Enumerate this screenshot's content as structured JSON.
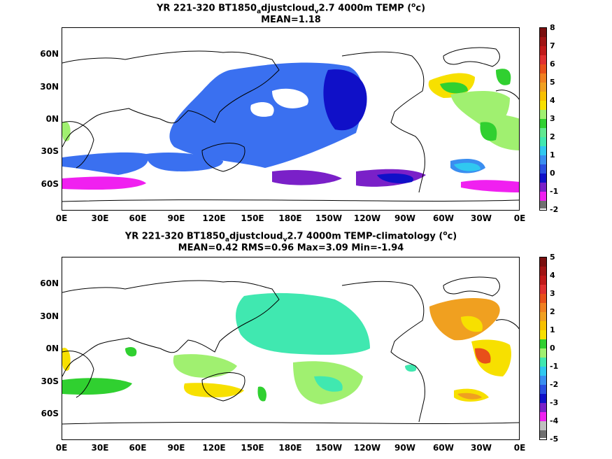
{
  "panel1": {
    "title_pre": "YR 221-320 BT1850",
    "title_sub1": "a",
    "title_mid": "djustcloud",
    "title_sub2": "v",
    "title_post": "2.7 4000m TEMP (",
    "title_sup": "o",
    "title_end": "c)",
    "stats": "MEAN=1.18",
    "colorbar_labels": [
      "8",
      "7",
      "6",
      "5",
      "4",
      "3",
      "2",
      "1",
      "0",
      "-1",
      "-2"
    ]
  },
  "panel2": {
    "title_pre": "YR 221-320 BT1850",
    "title_sub1": "a",
    "title_mid": "djustcloud",
    "title_sub2": "v",
    "title_post": "2.7 4000m TEMP-climatology (",
    "title_sup": "o",
    "title_end": "c)",
    "stats": "MEAN=0.42   RMS=0.96   Max=3.09   Min=-1.94",
    "colorbar_labels": [
      "5",
      "4",
      "3",
      "2",
      "1",
      "0",
      "-1",
      "-2",
      "-3",
      "-4",
      "-5"
    ]
  },
  "axes": {
    "lat_labels": [
      "60N",
      "30N",
      "0N",
      "30S",
      "60S"
    ],
    "lon_labels": [
      "0E",
      "30E",
      "60E",
      "90E",
      "120E",
      "150E",
      "180E",
      "150W",
      "120W",
      "90W",
      "60W",
      "30W",
      "0E"
    ]
  },
  "colors": {
    "scale": [
      "#7a0f0f",
      "#c01a1a",
      "#e8501a",
      "#f0a020",
      "#f7e000",
      "#30d030",
      "#a0f070",
      "#40e8b0",
      "#30c8f0",
      "#3a8ef0",
      "#2a50e0",
      "#1010c8",
      "#7a20c8",
      "#f020f0",
      "#c0c0c0",
      "#707070"
    ]
  }
}
